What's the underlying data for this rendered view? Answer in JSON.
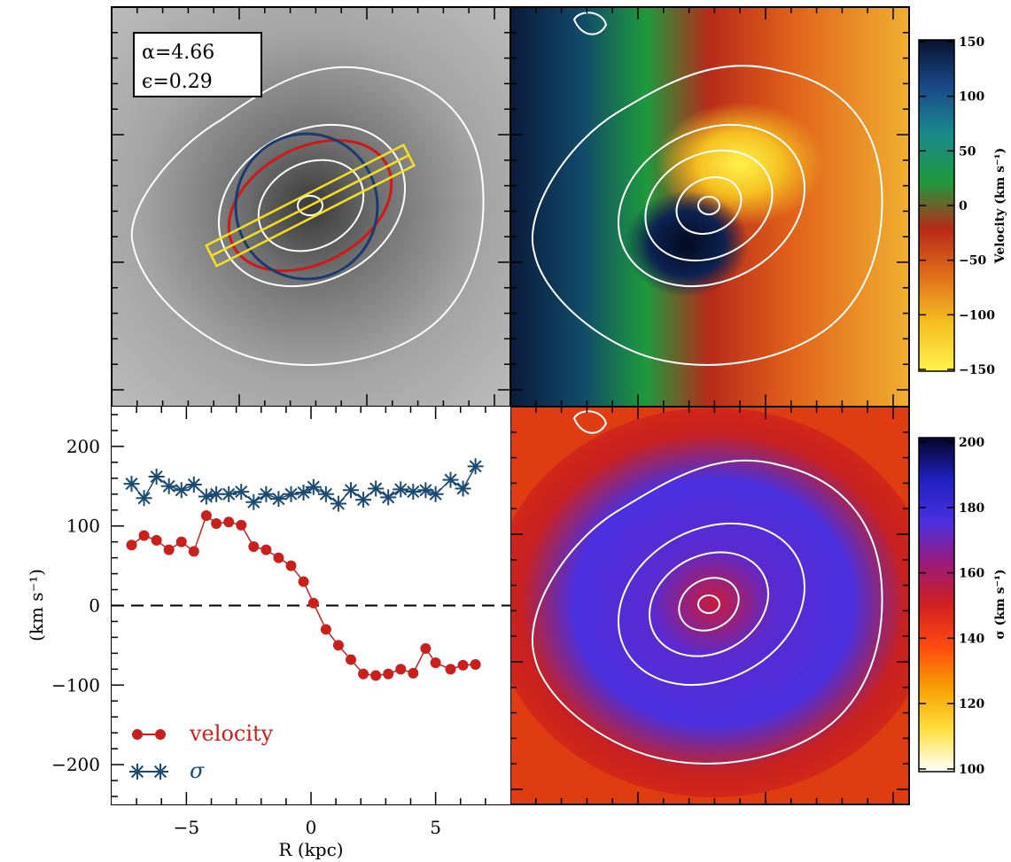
{
  "panels": {
    "image": {
      "annotations": [
        "α=4.66",
        "ϵ=0.29"
      ]
    },
    "velocity_map": {
      "colorbar": {
        "label": "Velocity (km s⁻¹)",
        "ticks": [
          "150",
          "100",
          "50",
          "0",
          "−50",
          "−100",
          "−150"
        ],
        "colors": [
          "#0a1230",
          "#1a4a8a",
          "#1a8a8a",
          "#1e9a3c",
          "#b82a1a",
          "#e0701a",
          "#f5c020",
          "#fff24a"
        ]
      }
    },
    "dispersion_map": {
      "colorbar": {
        "label": "σ (km s⁻¹)",
        "ticks": [
          "200",
          "180",
          "160",
          "140",
          "120",
          "100"
        ],
        "colors": [
          "#05052a",
          "#2020c0",
          "#4a30e0",
          "#9a1a7a",
          "#d02020",
          "#ff4a10",
          "#f5a000",
          "#ffe040",
          "#ffffff"
        ]
      }
    }
  },
  "chart_data": {
    "type": "line",
    "xlabel": "R (kpc)",
    "ylabel": "(km s⁻¹)",
    "xlim": [
      -8,
      8
    ],
    "ylim": [
      -250,
      250
    ],
    "xticks": [
      -5,
      0,
      5
    ],
    "yticks": [
      -200,
      -100,
      0,
      100,
      200
    ],
    "xtick_labels": [
      "−5",
      "0",
      "5"
    ],
    "ytick_labels": [
      "−200",
      "−100",
      "0",
      "100",
      "200"
    ],
    "zero_line": true,
    "legend": "bottom-left",
    "series": [
      {
        "name": "velocity",
        "color": "#c8201c",
        "marker": "circle",
        "x": [
          -7.2,
          -6.7,
          -6.2,
          -5.7,
          -5.2,
          -4.7,
          -4.2,
          -3.8,
          -3.3,
          -2.8,
          -2.3,
          -1.8,
          -1.3,
          -0.8,
          -0.3,
          0.1,
          0.6,
          1.1,
          1.6,
          2.1,
          2.6,
          3.1,
          3.6,
          4.1,
          4.6,
          5.0,
          5.6,
          6.1,
          6.6
        ],
        "values": [
          76,
          88,
          82,
          70,
          80,
          68,
          113,
          103,
          105,
          101,
          74,
          70,
          60,
          50,
          30,
          3,
          -30,
          -50,
          -68,
          -86,
          -88,
          -86,
          -80,
          -85,
          -54,
          -72,
          -80,
          -75,
          -74
        ]
      },
      {
        "name": "σ",
        "color": "#1a4a72",
        "marker": "asterisk",
        "x": [
          -7.2,
          -6.7,
          -6.2,
          -5.7,
          -5.2,
          -4.7,
          -4.2,
          -3.8,
          -3.3,
          -2.8,
          -2.3,
          -1.8,
          -1.3,
          -0.8,
          -0.3,
          0.1,
          0.6,
          1.1,
          1.6,
          2.1,
          2.6,
          3.1,
          3.6,
          4.1,
          4.6,
          5.0,
          5.6,
          6.1,
          6.6
        ],
        "values": [
          153,
          135,
          162,
          150,
          145,
          152,
          137,
          140,
          140,
          143,
          130,
          140,
          134,
          140,
          142,
          149,
          140,
          128,
          145,
          133,
          147,
          136,
          146,
          143,
          145,
          140,
          158,
          147,
          175
        ]
      }
    ]
  }
}
